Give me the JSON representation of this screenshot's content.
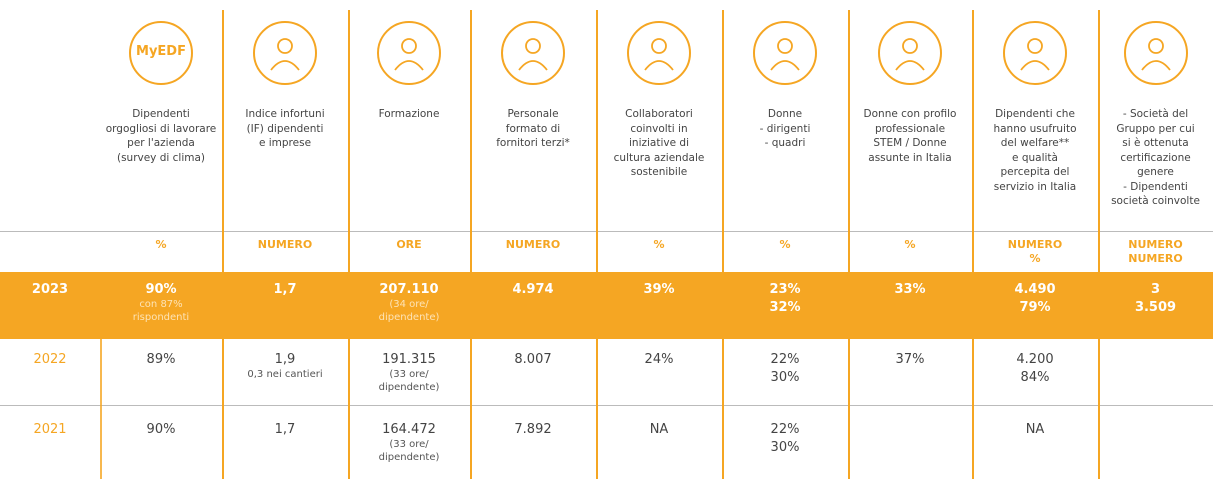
{
  "table": {
    "columns": [
      {
        "icon_text": "MyEDF",
        "label": [
          "Dipendenti",
          "orgogliosi di lavorare",
          "per l'azienda",
          "(survey di clima)"
        ],
        "unit": [
          "%"
        ]
      },
      {
        "label": [
          "Indice infortuni",
          "(IF) dipendenti",
          "e imprese"
        ],
        "unit": [
          "NUMERO"
        ]
      },
      {
        "label": [
          "Formazione"
        ],
        "unit": [
          "ORE"
        ]
      },
      {
        "label": [
          "Personale",
          "formato di",
          "fornitori terzi*"
        ],
        "unit": [
          "NUMERO"
        ]
      },
      {
        "label": [
          "Collaboratori",
          "coinvolti in",
          "iniziative di",
          "cultura aziendale",
          "sostenibile"
        ],
        "unit": [
          "%"
        ]
      },
      {
        "label": [
          "Donne",
          "- dirigenti",
          "- quadri"
        ],
        "unit": [
          "%"
        ]
      },
      {
        "label": [
          "Donne con profilo",
          "professionale",
          "STEM / Donne",
          "assunte in Italia"
        ],
        "unit": [
          "%"
        ]
      },
      {
        "label": [
          "Dipendenti che",
          "hanno usufruito",
          "del welfare**",
          "e qualità",
          "percepita del",
          "servizio in Italia"
        ],
        "unit": [
          "NUMERO",
          "%"
        ]
      },
      {
        "label": [
          "- Società del",
          "Gruppo per cui",
          "si è ottenuta",
          "certificazione",
          "genere",
          "- Dipendenti",
          "società coinvolte"
        ],
        "unit": [
          "NUMERO",
          "NUMERO"
        ]
      }
    ],
    "rows": [
      {
        "year": "2023",
        "cells": [
          {
            "main": [
              "90%"
            ],
            "sub": [
              "con 87%",
              "rispondenti"
            ]
          },
          {
            "main": [
              "1,7"
            ]
          },
          {
            "main": [
              "207.110"
            ],
            "sub": [
              "(34 ore/",
              "dipendente)"
            ]
          },
          {
            "main": [
              "4.974"
            ]
          },
          {
            "main": [
              "39%"
            ]
          },
          {
            "main": [
              "23%",
              "32%"
            ]
          },
          {
            "main": [
              "33%"
            ]
          },
          {
            "main": [
              "4.490",
              "79%"
            ]
          },
          {
            "main": [
              "3",
              "3.509"
            ]
          }
        ]
      },
      {
        "year": "2022",
        "cells": [
          {
            "main": [
              "89%"
            ]
          },
          {
            "main": [
              "1,9"
            ],
            "sub": [
              "0,3 nei cantieri"
            ]
          },
          {
            "main": [
              "191.315"
            ],
            "sub": [
              "(33 ore/",
              "dipendente)"
            ]
          },
          {
            "main": [
              "8.007"
            ]
          },
          {
            "main": [
              "24%"
            ]
          },
          {
            "main": [
              "22%",
              "30%"
            ]
          },
          {
            "main": [
              "37%"
            ]
          },
          {
            "main": [
              "4.200",
              "84%"
            ]
          },
          {
            "main": []
          }
        ]
      },
      {
        "year": "2021",
        "cells": [
          {
            "main": [
              "90%"
            ]
          },
          {
            "main": [
              "1,7"
            ]
          },
          {
            "main": [
              "164.472"
            ],
            "sub": [
              "(33 ore/",
              "dipendente)"
            ]
          },
          {
            "main": [
              "7.892"
            ]
          },
          {
            "main": [
              "NA"
            ]
          },
          {
            "main": [
              "22%",
              "30%"
            ]
          },
          {
            "main": []
          },
          {
            "main": [
              "NA"
            ]
          },
          {
            "main": []
          }
        ]
      }
    ]
  }
}
